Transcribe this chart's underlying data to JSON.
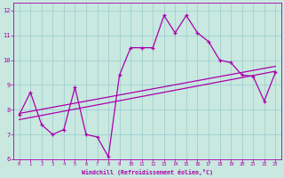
{
  "xlabel": "Windchill (Refroidissement éolien,°C)",
  "xlim": [
    -0.5,
    23.5
  ],
  "ylim": [
    6,
    12.3
  ],
  "xticks": [
    0,
    1,
    2,
    3,
    4,
    5,
    6,
    7,
    8,
    9,
    10,
    11,
    12,
    13,
    14,
    15,
    16,
    17,
    18,
    19,
    20,
    21,
    22,
    23
  ],
  "yticks": [
    6,
    7,
    8,
    9,
    10,
    11,
    12
  ],
  "bg_color": "#c8e8e0",
  "line_color": "#aa00aa",
  "grid_color": "#99cccc",
  "series1_x": [
    0,
    1,
    2,
    3,
    4,
    5,
    6,
    7,
    8,
    9,
    10,
    11,
    12,
    13,
    14,
    15,
    16,
    17,
    18,
    19,
    20,
    21,
    22,
    23
  ],
  "series1_y": [
    7.8,
    8.7,
    7.4,
    7.0,
    7.2,
    8.9,
    7.0,
    6.9,
    6.1,
    9.4,
    10.5,
    10.5,
    10.5,
    11.8,
    11.1,
    11.8,
    11.1,
    10.75,
    10.0,
    9.9,
    9.4,
    9.35,
    8.35,
    9.5
  ],
  "series2_x": [
    0,
    23
  ],
  "series2_y": [
    7.6,
    9.55
  ],
  "series3_x": [
    0,
    23
  ],
  "series3_y": [
    7.85,
    9.75
  ]
}
